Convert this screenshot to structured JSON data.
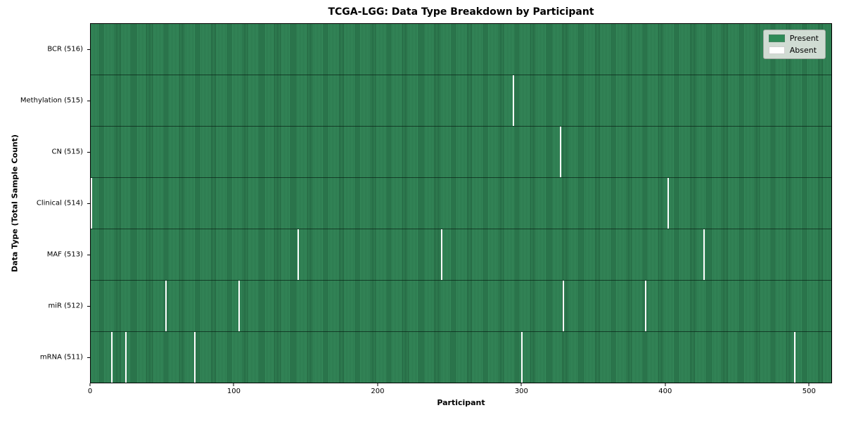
{
  "title": "TCGA-LGG: Data Type Breakdown by Participant",
  "axes": {
    "x_label": "Participant",
    "y_label": "Data Type (Total Sample Count)"
  },
  "legend": {
    "items": [
      {
        "label": "Present",
        "color": "#2e8b57"
      },
      {
        "label": "Absent",
        "color": "#ffffff"
      }
    ]
  },
  "chart_data": {
    "type": "heatmap",
    "title": "TCGA-LGG: Data Type Breakdown by Participant",
    "xlabel": "Participant",
    "ylabel": "Data Type (Total Sample Count)",
    "x_range": [
      0,
      516
    ],
    "x_ticks": [
      0,
      100,
      200,
      300,
      400,
      500
    ],
    "total_participants": 516,
    "legend": [
      "Present",
      "Absent"
    ],
    "legend_position": "upper right",
    "grid": false,
    "rows": [
      {
        "label": "BCR (516)",
        "data_type": "BCR",
        "present_count": 516,
        "absent_participants": []
      },
      {
        "label": "Methylation (515)",
        "data_type": "Methylation",
        "present_count": 515,
        "absent_participants": [
          294
        ]
      },
      {
        "label": "CN (515)",
        "data_type": "CN",
        "present_count": 515,
        "absent_participants": [
          327
        ]
      },
      {
        "label": "Clinical (514)",
        "data_type": "Clinical",
        "present_count": 514,
        "absent_participants": [
          0,
          402
        ]
      },
      {
        "label": "MAF (513)",
        "data_type": "MAF",
        "present_count": 513,
        "absent_participants": [
          144,
          244,
          427
        ]
      },
      {
        "label": "miR (512)",
        "data_type": "miR",
        "present_count": 512,
        "absent_participants": [
          52,
          103,
          329,
          386
        ]
      },
      {
        "label": "mRNA (511)",
        "data_type": "mRNA",
        "present_count": 511,
        "absent_participants": [
          14,
          24,
          72,
          300,
          490
        ]
      }
    ],
    "colors": {
      "present": "#2e8b57",
      "present_stripe_light": "#368c5c",
      "present_stripe_dark": "#1f5c3a",
      "absent": "#ffffff"
    }
  }
}
